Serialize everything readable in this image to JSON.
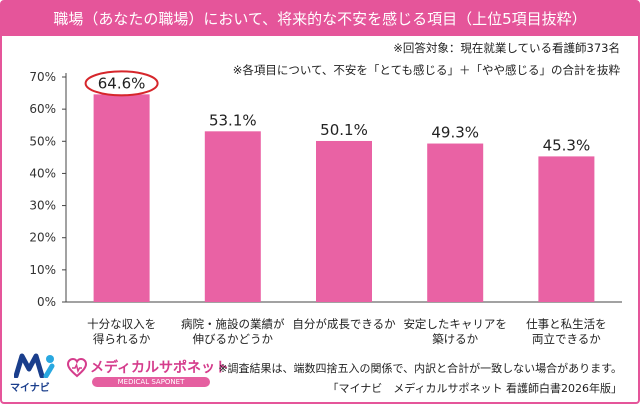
{
  "header": {
    "title": "職場（あなたの職場）において、将来的な不安を感じる項目（上位5項目抜粋）"
  },
  "notes": {
    "respondents": "※回答対象：現在就業している看護師373名",
    "method": "※各項目について、不安を「とても感じる」＋「やや感じる」の合計を抜粋"
  },
  "footer": {
    "rounding_note": "※調査結果は、端数四捨五入の関係で、内訳と合計が一致しない場合があります。",
    "source": "「マイナビ　メディカルサポネット 看護師白書2026年版」"
  },
  "logos": {
    "mynavi": "マイナビ",
    "medical_saponet": "メディカルサポネット",
    "medical_saponet_en": "MEDICAL SAPONET"
  },
  "colors": {
    "accent": "#e5559a",
    "bar": "#e962a4",
    "highlight_circle": "#d6262b"
  },
  "chart_data": {
    "type": "bar",
    "categories": [
      "十分な収入を\n得られるか",
      "病院・施設の業績が\n伸びるかどうか",
      "自分が成長できるか",
      "安定したキャリアを\n築けるか",
      "仕事と私生活を\n両立できるか"
    ],
    "values": [
      64.6,
      53.1,
      50.1,
      49.3,
      45.3
    ],
    "data_labels": [
      "64.6%",
      "53.1%",
      "50.1%",
      "49.3%",
      "45.3%"
    ],
    "highlighted_index": 0,
    "ylim": [
      0,
      70
    ],
    "yticks": [
      0,
      10,
      20,
      30,
      40,
      50,
      60,
      70
    ],
    "ytick_labels": [
      "0%",
      "10%",
      "20%",
      "30%",
      "40%",
      "50%",
      "60%",
      "70%"
    ],
    "grid": false,
    "legend": "none"
  }
}
